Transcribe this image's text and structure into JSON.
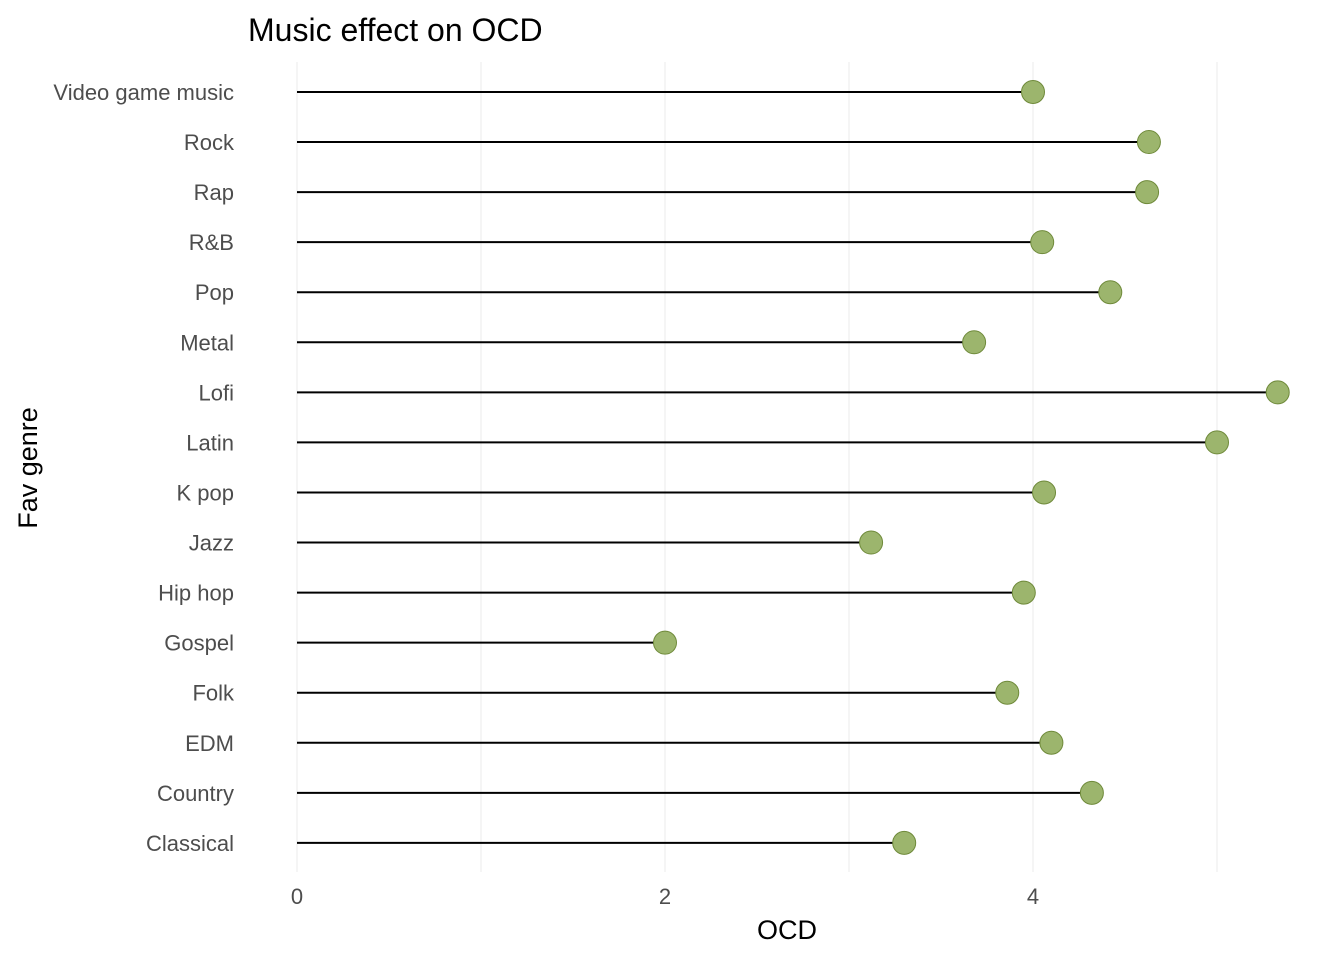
{
  "chart_data": {
    "type": "lollipop",
    "title": "Music effect on OCD",
    "xlabel": "OCD",
    "ylabel": "Fav genre",
    "xlim": [
      0,
      5.35
    ],
    "x_ticks": [
      0,
      2,
      4
    ],
    "x_tick_labels": [
      "0",
      "2",
      "4"
    ],
    "grid": "vertical",
    "legend": "none",
    "point_color": "#9cb56d",
    "stem_color": "#000000",
    "categories": [
      "Video game music",
      "Rock",
      "Rap",
      "R&B",
      "Pop",
      "Metal",
      "Lofi",
      "Latin",
      "K pop",
      "Jazz",
      "Hip hop",
      "Gospel",
      "Folk",
      "EDM",
      "Country",
      "Classical"
    ],
    "values": [
      4.0,
      4.63,
      4.62,
      4.05,
      4.42,
      3.68,
      5.33,
      5.0,
      4.06,
      3.12,
      3.95,
      2.0,
      3.86,
      4.1,
      4.32,
      3.3
    ]
  }
}
